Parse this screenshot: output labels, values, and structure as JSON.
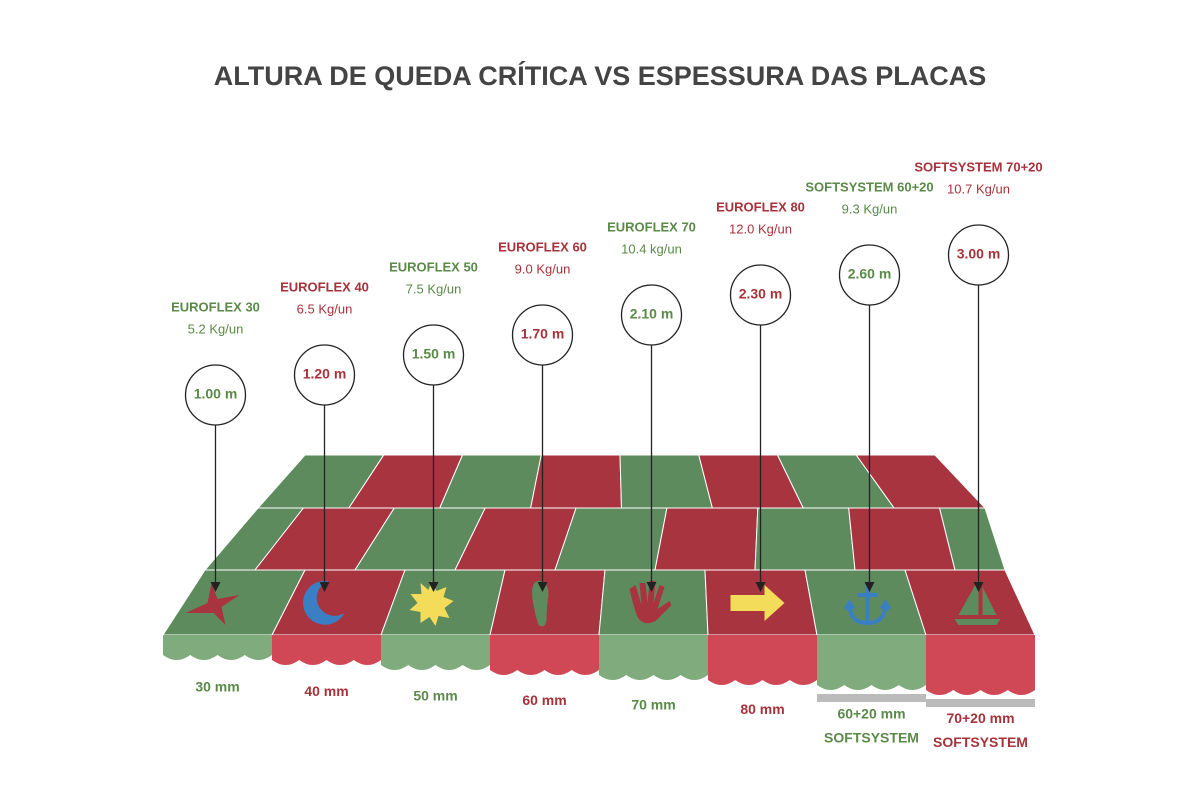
{
  "title": "ALTURA DE QUEDA CRÍTICA VS ESPESSURA DAS PLACAS",
  "products": [
    {
      "name": "EUROFLEX 30",
      "weight": "5.2 Kg/un",
      "height": "1.00 m",
      "thickness": [
        "30 mm"
      ]
    },
    {
      "name": "EUROFLEX 40",
      "weight": "6.5 Kg/un",
      "height": "1.20 m",
      "thickness": [
        "40 mm"
      ]
    },
    {
      "name": "EUROFLEX 50",
      "weight": "7.5 Kg/un",
      "height": "1.50 m",
      "thickness": [
        "50 mm"
      ]
    },
    {
      "name": "EUROFLEX 60",
      "weight": "9.0 Kg/un",
      "height": "1.70 m",
      "thickness": [
        "60 mm"
      ]
    },
    {
      "name": "EUROFLEX 70",
      "weight": "10.4 kg/un",
      "height": "2.10 m",
      "thickness": [
        "70 mm"
      ]
    },
    {
      "name": "EUROFLEX 80",
      "weight": "12.0 Kg/un",
      "height": "2.30 m",
      "thickness": [
        "80 mm"
      ]
    },
    {
      "name": "SOFTSYSTEM 60+20",
      "weight": "9.3 Kg/un",
      "height": "2.60 m",
      "thickness": [
        "60+20 mm",
        "SOFTSYSTEM"
      ]
    },
    {
      "name": "SOFTSYSTEM 70+20",
      "weight": "10.7 Kg/un",
      "height": "3.00 m",
      "thickness": [
        "70+20 mm",
        "SOFTSYSTEM"
      ]
    }
  ]
}
